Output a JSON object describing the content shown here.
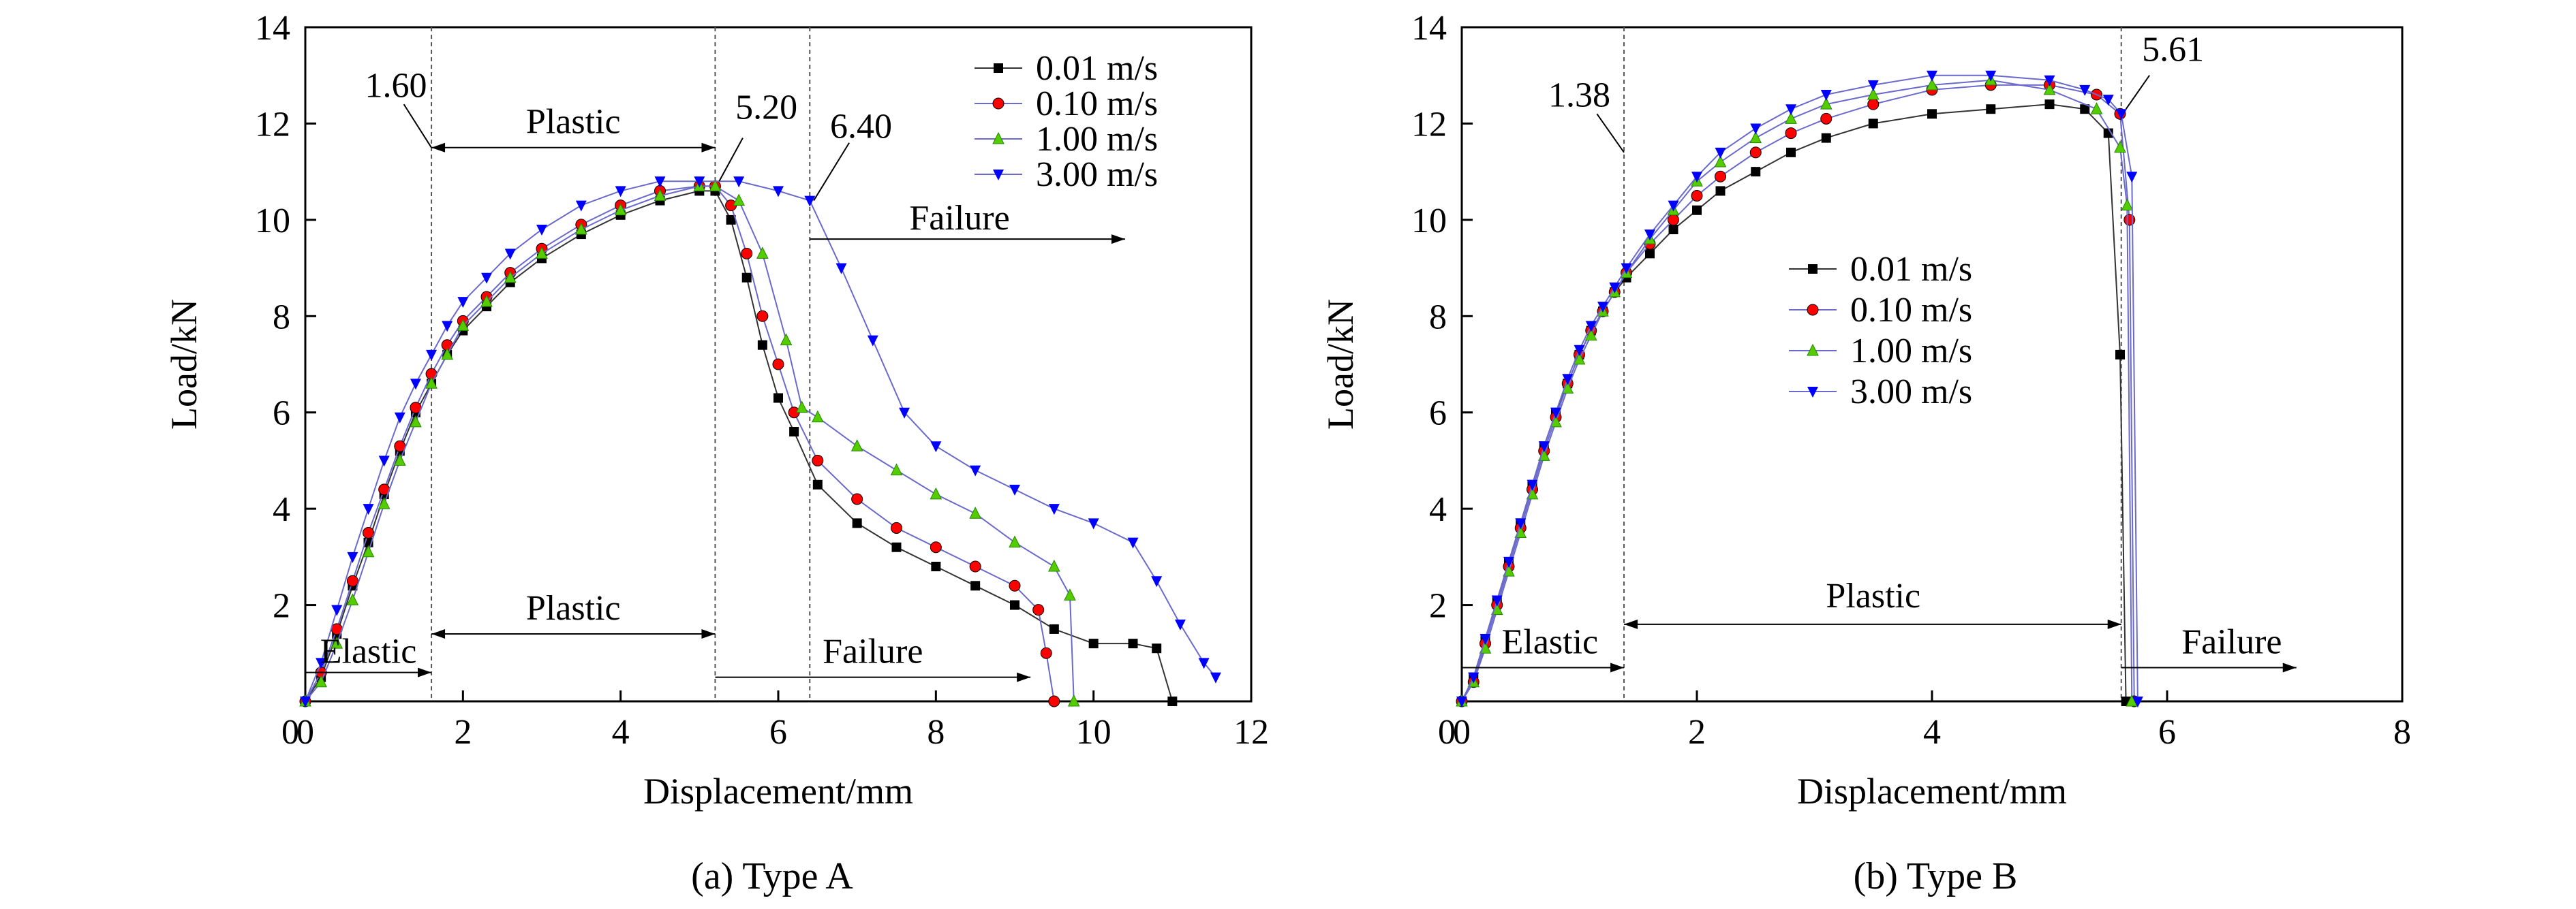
{
  "chart_data": [
    {
      "id": "a",
      "type": "line",
      "caption": "(a) Type A",
      "xlabel": "Displacement/mm",
      "ylabel": "Load/kN",
      "xlim": [
        0,
        12
      ],
      "ylim": [
        0,
        14
      ],
      "xticks": [
        0,
        2,
        4,
        6,
        8,
        10,
        12
      ],
      "yticks": [
        2,
        4,
        6,
        8,
        10,
        12,
        14
      ],
      "grid": false,
      "legend_position": "top-right",
      "series": [
        {
          "name": "0.01 m/s",
          "color": "#000000",
          "marker": "square",
          "x": [
            0,
            0.2,
            0.4,
            0.6,
            0.8,
            1.0,
            1.2,
            1.4,
            1.6,
            1.8,
            2.0,
            2.3,
            2.6,
            3.0,
            3.5,
            4.0,
            4.5,
            5.0,
            5.2,
            5.4,
            5.6,
            5.8,
            6.0,
            6.2,
            6.5,
            7.0,
            7.5,
            8.0,
            8.5,
            9.0,
            9.5,
            10.0,
            10.5,
            10.8,
            11.0
          ],
          "y": [
            0,
            0.5,
            1.4,
            2.4,
            3.3,
            4.3,
            5.2,
            6.0,
            6.6,
            7.2,
            7.7,
            8.2,
            8.7,
            9.2,
            9.7,
            10.1,
            10.4,
            10.6,
            10.6,
            10.0,
            8.8,
            7.4,
            6.3,
            5.6,
            4.5,
            3.7,
            3.2,
            2.8,
            2.4,
            2.0,
            1.5,
            1.2,
            1.2,
            1.1,
            0.0
          ]
        },
        {
          "name": "0.10 m/s",
          "color": "#ff0000",
          "marker": "circle",
          "x": [
            0,
            0.2,
            0.4,
            0.6,
            0.8,
            1.0,
            1.2,
            1.4,
            1.6,
            1.8,
            2.0,
            2.3,
            2.6,
            3.0,
            3.5,
            4.0,
            4.5,
            5.0,
            5.2,
            5.4,
            5.6,
            5.8,
            6.0,
            6.2,
            6.5,
            7.0,
            7.5,
            8.0,
            8.5,
            9.0,
            9.3,
            9.4,
            9.5
          ],
          "y": [
            0,
            0.6,
            1.5,
            2.5,
            3.5,
            4.4,
            5.3,
            6.1,
            6.8,
            7.4,
            7.9,
            8.4,
            8.9,
            9.4,
            9.9,
            10.3,
            10.6,
            10.7,
            10.7,
            10.3,
            9.3,
            8.0,
            7.0,
            6.0,
            5.0,
            4.2,
            3.6,
            3.2,
            2.8,
            2.4,
            1.9,
            1.0,
            0.0
          ]
        },
        {
          "name": "1.00 m/s",
          "color": "#55cc00",
          "marker": "triangle-up",
          "x": [
            0,
            0.2,
            0.4,
            0.6,
            0.8,
            1.0,
            1.2,
            1.4,
            1.6,
            1.8,
            2.0,
            2.3,
            2.6,
            3.0,
            3.5,
            4.0,
            4.5,
            5.0,
            5.2,
            5.5,
            5.8,
            6.1,
            6.3,
            6.5,
            7.0,
            7.5,
            8.0,
            8.5,
            9.0,
            9.5,
            9.7,
            9.75
          ],
          "y": [
            0,
            0.4,
            1.2,
            2.1,
            3.1,
            4.1,
            5.0,
            5.8,
            6.6,
            7.2,
            7.8,
            8.3,
            8.8,
            9.3,
            9.8,
            10.2,
            10.5,
            10.7,
            10.7,
            10.4,
            9.3,
            7.5,
            6.1,
            5.9,
            5.3,
            4.8,
            4.3,
            3.9,
            3.3,
            2.8,
            2.2,
            0.0
          ]
        },
        {
          "name": "3.00 m/s",
          "color": "#0000ff",
          "marker": "triangle-down",
          "x": [
            0,
            0.2,
            0.4,
            0.6,
            0.8,
            1.0,
            1.2,
            1.4,
            1.6,
            1.8,
            2.0,
            2.3,
            2.6,
            3.0,
            3.5,
            4.0,
            4.5,
            5.0,
            5.5,
            6.0,
            6.4,
            6.8,
            7.2,
            7.6,
            8.0,
            8.5,
            9.0,
            9.5,
            10.0,
            10.5,
            10.8,
            11.1,
            11.4,
            11.55
          ],
          "y": [
            0,
            0.8,
            1.9,
            3.0,
            4.0,
            5.0,
            5.9,
            6.6,
            7.2,
            7.8,
            8.3,
            8.8,
            9.3,
            9.8,
            10.3,
            10.6,
            10.8,
            10.8,
            10.8,
            10.6,
            10.4,
            9.0,
            7.5,
            6.0,
            5.3,
            4.8,
            4.4,
            4.0,
            3.7,
            3.3,
            2.5,
            1.6,
            0.8,
            0.5
          ]
        }
      ],
      "vlines": [
        1.6,
        5.2,
        6.4
      ],
      "annotations": [
        {
          "text": "1.60",
          "x": 1.6,
          "y": 11.5
        },
        {
          "text": "5.20",
          "x": 5.2,
          "y": 10.7
        },
        {
          "text": "6.40",
          "x": 6.4,
          "y": 10.4
        },
        {
          "text": "Plastic",
          "x": 3.4,
          "y": 11.5
        },
        {
          "text": "Failure",
          "x": 8.2,
          "y": 9.6
        },
        {
          "text": "Elastic",
          "x": 0.8,
          "y": 0.6
        },
        {
          "text": "Plastic",
          "x": 3.4,
          "y": 1.4
        },
        {
          "text": "Failure",
          "x": 7.2,
          "y": 0.5
        }
      ]
    },
    {
      "id": "b",
      "type": "line",
      "caption": "(b) Type B",
      "xlabel": "Displacement/mm",
      "ylabel": "Load/kN",
      "xlim": [
        0,
        8
      ],
      "ylim": [
        0,
        14
      ],
      "xticks": [
        0,
        2,
        4,
        6,
        8
      ],
      "yticks": [
        2,
        4,
        6,
        8,
        10,
        12,
        14
      ],
      "grid": false,
      "legend_position": "center",
      "series": [
        {
          "name": "0.01 m/s",
          "color": "#000000",
          "marker": "square",
          "x": [
            0,
            0.1,
            0.2,
            0.3,
            0.4,
            0.5,
            0.6,
            0.7,
            0.8,
            0.9,
            1.0,
            1.1,
            1.2,
            1.3,
            1.4,
            1.6,
            1.8,
            2.0,
            2.2,
            2.5,
            2.8,
            3.1,
            3.5,
            4.0,
            4.5,
            5.0,
            5.3,
            5.5,
            5.6,
            5.65
          ],
          "y": [
            0,
            0.5,
            1.3,
            2.1,
            2.9,
            3.7,
            4.5,
            5.3,
            6.0,
            6.6,
            7.2,
            7.7,
            8.1,
            8.5,
            8.8,
            9.3,
            9.8,
            10.2,
            10.6,
            11.0,
            11.4,
            11.7,
            12.0,
            12.2,
            12.3,
            12.4,
            12.3,
            11.8,
            7.2,
            0.0
          ]
        },
        {
          "name": "0.10 m/s",
          "color": "#ff0000",
          "marker": "circle",
          "x": [
            0,
            0.1,
            0.2,
            0.3,
            0.4,
            0.5,
            0.6,
            0.7,
            0.8,
            0.9,
            1.0,
            1.1,
            1.2,
            1.3,
            1.4,
            1.6,
            1.8,
            2.0,
            2.2,
            2.5,
            2.8,
            3.1,
            3.5,
            4.0,
            4.5,
            5.0,
            5.4,
            5.6,
            5.68,
            5.72
          ],
          "y": [
            0,
            0.4,
            1.2,
            2.0,
            2.8,
            3.6,
            4.4,
            5.2,
            5.9,
            6.6,
            7.2,
            7.7,
            8.1,
            8.5,
            8.9,
            9.5,
            10.0,
            10.5,
            10.9,
            11.4,
            11.8,
            12.1,
            12.4,
            12.7,
            12.8,
            12.8,
            12.6,
            12.2,
            10.0,
            0.0
          ]
        },
        {
          "name": "1.00 m/s",
          "color": "#55cc00",
          "marker": "triangle-up",
          "x": [
            0,
            0.1,
            0.2,
            0.3,
            0.4,
            0.5,
            0.6,
            0.7,
            0.8,
            0.9,
            1.0,
            1.1,
            1.2,
            1.3,
            1.4,
            1.6,
            1.8,
            2.0,
            2.2,
            2.5,
            2.8,
            3.1,
            3.5,
            4.0,
            4.5,
            5.0,
            5.4,
            5.6,
            5.66,
            5.7
          ],
          "y": [
            0,
            0.4,
            1.1,
            1.9,
            2.7,
            3.5,
            4.3,
            5.1,
            5.8,
            6.5,
            7.1,
            7.6,
            8.1,
            8.5,
            8.9,
            9.6,
            10.2,
            10.8,
            11.2,
            11.7,
            12.1,
            12.4,
            12.6,
            12.8,
            12.9,
            12.7,
            12.3,
            11.5,
            10.3,
            0.0
          ]
        },
        {
          "name": "3.00 m/s",
          "color": "#0000ff",
          "marker": "triangle-down",
          "x": [
            0,
            0.1,
            0.2,
            0.3,
            0.4,
            0.5,
            0.6,
            0.7,
            0.8,
            0.9,
            1.0,
            1.1,
            1.2,
            1.3,
            1.4,
            1.6,
            1.8,
            2.0,
            2.2,
            2.5,
            2.8,
            3.1,
            3.5,
            4.0,
            4.5,
            5.0,
            5.3,
            5.5,
            5.61,
            5.7,
            5.75
          ],
          "y": [
            0,
            0.5,
            1.3,
            2.1,
            2.9,
            3.7,
            4.5,
            5.3,
            6.0,
            6.7,
            7.3,
            7.8,
            8.2,
            8.6,
            9.0,
            9.7,
            10.3,
            10.9,
            11.4,
            11.9,
            12.3,
            12.6,
            12.8,
            13.0,
            13.0,
            12.9,
            12.7,
            12.5,
            12.2,
            10.9,
            0.0
          ]
        }
      ],
      "vlines": [
        1.38,
        5.61
      ],
      "annotations": [
        {
          "text": "1.38",
          "x": 1.38,
          "y": 11.6
        },
        {
          "text": "5.61",
          "x": 5.61,
          "y": 12.3
        },
        {
          "text": "Elastic",
          "x": 0.7,
          "y": 0.7
        },
        {
          "text": "Plastic",
          "x": 3.5,
          "y": 1.6
        },
        {
          "text": "Failure",
          "x": 6.5,
          "y": 0.7
        }
      ]
    }
  ]
}
